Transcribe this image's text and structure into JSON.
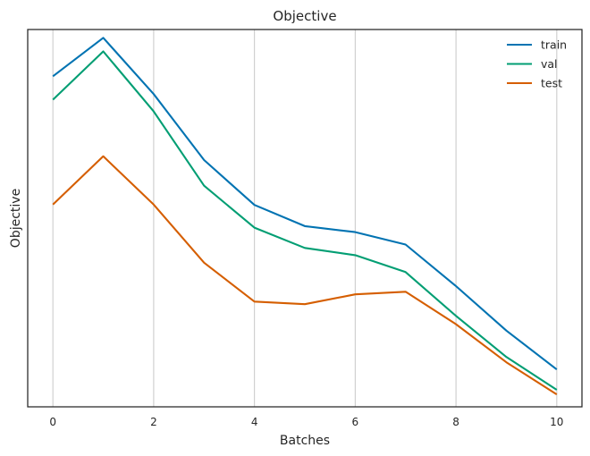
{
  "chart_data": {
    "type": "line",
    "title": "Objective",
    "xlabel": "Batches",
    "ylabel": "Objective",
    "x": [
      0,
      1,
      2,
      3,
      4,
      5,
      6,
      7,
      8,
      9,
      10
    ],
    "xticks": [
      0,
      2,
      4,
      6,
      8,
      10
    ],
    "xlim": [
      -0.5,
      10.5
    ],
    "ylim": [
      0,
      1
    ],
    "y_ticks_shown": false,
    "grid": "vertical",
    "legend_position": "top-right",
    "series": [
      {
        "name": "train",
        "color": "#0173b2",
        "values": [
          0.876,
          0.978,
          0.829,
          0.654,
          0.535,
          0.479,
          0.463,
          0.43,
          0.32,
          0.202,
          0.099
        ]
      },
      {
        "name": "val",
        "color": "#029e73",
        "values": [
          0.814,
          0.942,
          0.783,
          0.586,
          0.475,
          0.421,
          0.402,
          0.357,
          0.241,
          0.132,
          0.045
        ]
      },
      {
        "name": "test",
        "color": "#d55e00",
        "values": [
          0.536,
          0.664,
          0.536,
          0.382,
          0.279,
          0.272,
          0.298,
          0.305,
          0.219,
          0.118,
          0.033
        ]
      }
    ]
  }
}
